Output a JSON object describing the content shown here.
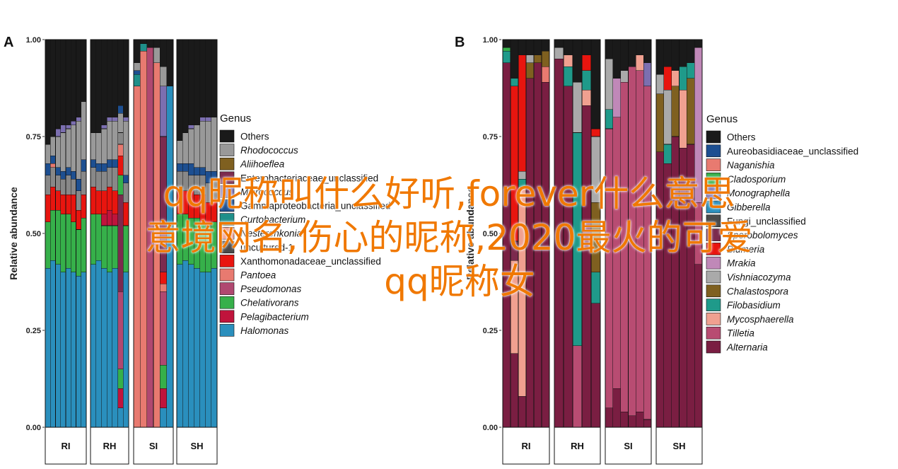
{
  "overlay_text": {
    "line1": "qq昵称叫什么好听,forever什么意思",
    "line2": "意境网名,伤心的昵称,2020最火的可爱",
    "line3": "qq昵称女"
  },
  "chart_data": [
    {
      "type": "bar",
      "stacked": true,
      "panel_label": "A",
      "ylabel": "Relative abundance",
      "ylim": [
        0,
        1
      ],
      "yticks": [
        "0.00",
        "0.25",
        "0.50",
        "0.75",
        "1.00"
      ],
      "facets": [
        "RI",
        "RH",
        "SI",
        "SH"
      ],
      "legend": {
        "title": "Genus",
        "placement": "right"
      },
      "series": [
        {
          "name": "Others",
          "color": "#1a1a1a"
        },
        {
          "name": "Rhodococcus",
          "color": "#999999",
          "italic": true
        },
        {
          "name": "Aliihoeflea",
          "color": "#7f6020",
          "italic": true
        },
        {
          "name": "Enterobacteriaceae_unclassified",
          "color": "#7c2a4e",
          "italic": false
        },
        {
          "name": "Micrococcus",
          "color": "#7c6fb0",
          "italic": true
        },
        {
          "name": "Gammaproteobacteria_unclassified",
          "color": "#1d4f91",
          "italic": false
        },
        {
          "name": "Curtobacterium",
          "color": "#1f8f8a",
          "italic": true
        },
        {
          "name": "Nesterenkonia",
          "color": "#f0a090",
          "italic": true
        },
        {
          "name": "uncultured-1",
          "color": "#4a4a4a",
          "italic": false
        },
        {
          "name": "Xanthomonadaceae_unclassified",
          "color": "#e8150f",
          "italic": false
        },
        {
          "name": "Pantoea",
          "color": "#e87a70",
          "italic": true
        },
        {
          "name": "Pseudomonas",
          "color": "#b04870",
          "italic": true
        },
        {
          "name": "Chelativorans",
          "color": "#36b04a",
          "italic": true
        },
        {
          "name": "Pelagibacterium",
          "color": "#c0143c",
          "italic": true
        },
        {
          "name": "Halomonas",
          "color": "#2a8fbd",
          "italic": true
        }
      ],
      "facet_samples": [
        [
          {
            "Halomonas": 0.41,
            "Chelativorans": 0.12,
            "Xanthomonadaceae_unclassified": 0.07,
            "uncultured-1": 0.05,
            "Gammaproteobacteria_unclassified": 0.03,
            "Rhodococcus": 0.05,
            "Others": 0.27
          },
          {
            "Halomonas": 0.43,
            "Chelativorans": 0.13,
            "Xanthomonadaceae_unclassified": 0.06,
            "uncultured-1": 0.05,
            "Pantoea": 0.01,
            "Gammaproteobacteria_unclassified": 0.02,
            "Rhodococcus": 0.05,
            "Others": 0.25
          },
          {
            "Halomonas": 0.42,
            "Chelativorans": 0.14,
            "Xanthomonadaceae_unclassified": 0.05,
            "uncultured-1": 0.04,
            "Gammaproteobacteria_unclassified": 0.02,
            "Rhodococcus": 0.08,
            "Micrococcus": 0.02,
            "Others": 0.23
          },
          {
            "Halomonas": 0.4,
            "Chelativorans": 0.15,
            "Xanthomonadaceae_unclassified": 0.05,
            "uncultured-1": 0.04,
            "Gammaproteobacteria_unclassified": 0.02,
            "Rhodococcus": 0.1,
            "Micrococcus": 0.02,
            "Others": 0.22
          },
          {
            "Halomonas": 0.41,
            "Chelativorans": 0.14,
            "Xanthomonadaceae_unclassified": 0.05,
            "uncultured-1": 0.05,
            "Gammaproteobacteria_unclassified": 0.02,
            "Rhodococcus": 0.1,
            "Micrococcus": 0.01,
            "Others": 0.22
          },
          {
            "Halomonas": 0.4,
            "Chelativorans": 0.13,
            "Xanthomonadaceae_unclassified": 0.07,
            "uncultured-1": 0.04,
            "Gammaproteobacteria_unclassified": 0.02,
            "Rhodococcus": 0.12,
            "Micrococcus": 0.01,
            "Others": 0.21
          },
          {
            "Halomonas": 0.39,
            "Chelativorans": 0.12,
            "Xanthomonadaceae_unclassified": 0.05,
            "uncultured-1": 0.05,
            "Gammaproteobacteria_unclassified": 0.03,
            "Rhodococcus": 0.15,
            "Micrococcus": 0.01,
            "Others": 0.2
          },
          {
            "Halomonas": 0.4,
            "Chelativorans": 0.14,
            "Xanthomonadaceae_unclassified": 0.06,
            "uncultured-1": 0.06,
            "Gammaproteobacteria_unclassified": 0.03,
            "Rhodococcus": 0.15,
            "Others": 0.16
          }
        ],
        [
          {
            "Halomonas": 0.42,
            "Chelativorans": 0.13,
            "Xanthomonadaceae_unclassified": 0.07,
            "uncultured-1": 0.05,
            "Gammaproteobacteria_unclassified": 0.02,
            "Rhodococcus": 0.07,
            "Others": 0.24
          },
          {
            "Halomonas": 0.43,
            "Chelativorans": 0.12,
            "Xanthomonadaceae_unclassified": 0.06,
            "uncultured-1": 0.05,
            "Gammaproteobacteria_unclassified": 0.02,
            "Rhodococcus": 0.08,
            "Others": 0.24
          },
          {
            "Halomonas": 0.41,
            "Chelativorans": 0.11,
            "Pelagibacterium": 0.03,
            "Xanthomonadaceae_unclassified": 0.06,
            "uncultured-1": 0.05,
            "Gammaproteobacteria_unclassified": 0.02,
            "Rhodococcus": 0.09,
            "Micrococcus": 0.01,
            "Others": 0.22
          },
          {
            "Halomonas": 0.4,
            "Chelativorans": 0.12,
            "Pelagibacterium": 0.04,
            "Xanthomonadaceae_unclassified": 0.06,
            "uncultured-1": 0.05,
            "Gammaproteobacteria_unclassified": 0.02,
            "Rhodococcus": 0.1,
            "Micrococcus": 0.01,
            "Others": 0.2
          },
          {
            "Halomonas": 0.41,
            "Chelativorans": 0.11,
            "Pelagibacterium": 0.03,
            "Xanthomonadaceae_unclassified": 0.06,
            "uncultured-1": 0.06,
            "Gammaproteobacteria_unclassified": 0.02,
            "Rhodococcus": 0.1,
            "Micrococcus": 0.01,
            "Others": 0.2
          },
          {
            "Halomonas": 0.05,
            "Pelagibacterium": 0.05,
            "Chelativorans": 0.05,
            "Pseudomonas": 0.2,
            "Enterobacteriaceae_unclassified": 0.25,
            "Chelativorans2": 0.05,
            "Xanthomonadaceae_unclassified": 0.05,
            "Pantoea": 0.03,
            "uncultured-1": 0.03,
            "Rhodococcus": 0.05,
            "Gammaproteobacteria_unclassified": 0.02,
            "Others": 0.17
          },
          {
            "Halomonas": 0.4,
            "Chelativorans": 0.12,
            "Xanthomonadaceae_unclassified": 0.06,
            "uncultured-1": 0.05,
            "Gammaproteobacteria_unclassified": 0.02,
            "Rhodococcus": 0.14,
            "Micrococcus": 0.01,
            "Others": 0.2
          }
        ],
        [
          {
            "Pantoea": 0.88,
            "Curtobacterium": 0.03,
            "Gammaproteobacteria_unclassified": 0.01,
            "Rhodococcus": 0.02,
            "Others": 0.06
          },
          {
            "Pantoea": 0.97,
            "Curtobacterium": 0.02,
            "Others": 0.01
          },
          {
            "Pseudomonas": 0.98,
            "Others": 0.02
          },
          {
            "Pantoea": 0.94,
            "Rhodococcus": 0.04,
            "Others": 0.02
          },
          {
            "Halomonas": 0.05,
            "Pelagibacterium": 0.05,
            "Chelativorans": 0.06,
            "Pseudomonas": 0.19,
            "Pantoea": 0.02,
            "Xanthomonadaceae_unclassified": 0.03,
            "Enterobacteriaceae_unclassified": 0.35,
            "Micrococcus": 0.13,
            "Rhodococcus": 0.05,
            "Others": 0.07
          },
          {
            "Halomonas": 0.88,
            "Others": 0.12
          }
        ],
        [
          {
            "Halomonas": 0.42,
            "Chelativorans": 0.13,
            "Xanthomonadaceae_unclassified": 0.06,
            "uncultured-1": 0.05,
            "Gammaproteobacteria_unclassified": 0.02,
            "Rhodococcus": 0.06,
            "Others": 0.26
          },
          {
            "Halomonas": 0.43,
            "Chelativorans": 0.12,
            "Xanthomonadaceae_unclassified": 0.06,
            "uncultured-1": 0.05,
            "Gammaproteobacteria_unclassified": 0.02,
            "Rhodococcus": 0.08,
            "Others": 0.24
          },
          {
            "Halomonas": 0.42,
            "Chelativorans": 0.12,
            "Xanthomonadaceae_unclassified": 0.07,
            "uncultured-1": 0.04,
            "Gammaproteobacteria_unclassified": 0.03,
            "Rhodococcus": 0.09,
            "Micrococcus": 0.01,
            "Others": 0.22
          },
          {
            "Halomonas": 0.41,
            "Chelativorans": 0.13,
            "Xanthomonadaceae_unclassified": 0.06,
            "uncultured-1": 0.05,
            "Gammaproteobacteria_unclassified": 0.02,
            "Rhodococcus": 0.11,
            "Others": 0.22
          },
          {
            "Halomonas": 0.4,
            "Chelativorans": 0.13,
            "Xanthomonadaceae_unclassified": 0.07,
            "uncultured-1": 0.05,
            "Gammaproteobacteria_unclassified": 0.02,
            "Rhodococcus": 0.12,
            "Micrococcus": 0.01,
            "Others": 0.2
          },
          {
            "Halomonas": 0.4,
            "Chelativorans": 0.12,
            "Xanthomonadaceae_unclassified": 0.06,
            "uncultured-1": 0.05,
            "Gammaproteobacteria_unclassified": 0.03,
            "Rhodococcus": 0.13,
            "Micrococcus": 0.01,
            "Others": 0.2
          },
          {
            "Halomonas": 0.41,
            "Chelativorans": 0.12,
            "Xanthomonadaceae_unclassified": 0.06,
            "uncultured-1": 0.05,
            "Gammaproteobacteria_unclassified": 0.02,
            "Rhodococcus": 0.14,
            "Others": 0.2
          }
        ]
      ]
    },
    {
      "type": "bar",
      "stacked": true,
      "panel_label": "B",
      "ylabel": "Relative abundance",
      "ylim": [
        0,
        1
      ],
      "yticks": [
        "0.00",
        "0.25",
        "0.50",
        "0.75",
        "1.00"
      ],
      "facets": [
        "RI",
        "RH",
        "SI",
        "SH"
      ],
      "legend": {
        "title": "Genus",
        "placement": "right"
      },
      "series": [
        {
          "name": "Others",
          "color": "#1a1a1a",
          "italic": false
        },
        {
          "name": "Aureobasidiaceae_unclassified",
          "color": "#1d4f91",
          "italic": false
        },
        {
          "name": "Naganishia",
          "color": "#e87a70",
          "italic": true
        },
        {
          "name": "Cladosporium",
          "color": "#36b04a",
          "italic": true
        },
        {
          "name": "Monographella",
          "color": "#7c6fb0",
          "italic": true
        },
        {
          "name": "Gibberella",
          "color": "#2a8fbd",
          "italic": true
        },
        {
          "name": "Fungi_unclassified",
          "color": "#4a4a4a",
          "italic": false
        },
        {
          "name": "Sporobolomyces",
          "color": "#7c2a4e",
          "italic": true
        },
        {
          "name": "Blumeria",
          "color": "#e8150f",
          "italic": true
        },
        {
          "name": "Mrakia",
          "color": "#c088b8",
          "italic": true
        },
        {
          "name": "Vishniacozyma",
          "color": "#aaaaaa",
          "italic": true
        },
        {
          "name": "Chalastospora",
          "color": "#7f6020",
          "italic": true
        },
        {
          "name": "Filobasidium",
          "color": "#1f9a8a",
          "italic": true
        },
        {
          "name": "Mycosphaerella",
          "color": "#f0a090",
          "italic": true
        },
        {
          "name": "Tilletia",
          "color": "#b84c72",
          "italic": true
        },
        {
          "name": "Alternaria",
          "color": "#7a1e42",
          "italic": true
        }
      ],
      "facet_samples": [
        [
          {
            "Alternaria": 0.94,
            "Filobasidium": 0.03,
            "Cladosporium": 0.01,
            "Others": 0.02
          },
          {
            "Alternaria": 0.19,
            "Mycosphaerella": 0.24,
            "Sporobolomyces": 0.05,
            "Blumeria": 0.4,
            "Filobasidium": 0.02,
            "Others": 0.1
          },
          {
            "Alternaria": 0.08,
            "Mycosphaerella": 0.54,
            "Filobasidium": 0.02,
            "Vishniacozyma": 0.02,
            "Blumeria": 0.3,
            "Others": 0.04
          },
          {
            "Alternaria": 0.9,
            "Chalastospora": 0.04,
            "Vishniacozyma": 0.02,
            "Others": 0.04
          },
          {
            "Alternaria": 0.94,
            "Chalastospora": 0.02,
            "Others": 0.04
          },
          {
            "Alternaria": 0.89,
            "Naganishia": 0.04,
            "Chalastospora": 0.04,
            "Others": 0.03
          }
        ],
        [
          {
            "Alternaria": 0.95,
            "Vishniacozyma": 0.03,
            "Others": 0.02
          },
          {
            "Alternaria": 0.88,
            "Filobasidium": 0.05,
            "Mycosphaerella": 0.03,
            "Others": 0.04
          },
          {
            "Tilletia": 0.21,
            "Filobasidium": 0.55,
            "Vishniacozyma": 0.13,
            "Others": 0.11
          },
          {
            "Alternaria": 0.83,
            "Mycosphaerella": 0.04,
            "Filobasidium": 0.05,
            "Blumeria": 0.04,
            "Others": 0.04
          },
          {
            "Alternaria": 0.32,
            "Filobasidium": 0.08,
            "Chalastospora": 0.18,
            "Vishniacozyma": 0.17,
            "Blumeria": 0.02,
            "Others": 0.23
          }
        ],
        [
          {
            "Alternaria": 0.05,
            "Tilletia": 0.72,
            "Filobasidium": 0.05,
            "Vishniacozyma": 0.13,
            "Others": 0.05
          },
          {
            "Alternaria": 0.1,
            "Tilletia": 0.7,
            "Mrakia": 0.1,
            "Others": 0.1
          },
          {
            "Alternaria": 0.04,
            "Tilletia": 0.85,
            "Vishniacozyma": 0.03,
            "Others": 0.08
          },
          {
            "Alternaria": 0.03,
            "Tilletia": 0.9,
            "Others": 0.07
          },
          {
            "Alternaria": 0.04,
            "Tilletia": 0.88,
            "Mycosphaerella": 0.04,
            "Others": 0.04
          },
          {
            "Alternaria": 0.02,
            "Tilletia": 0.86,
            "Monographella": 0.06,
            "Others": 0.06
          }
        ],
        [
          {
            "Alternaria": 0.71,
            "Chalastospora": 0.15,
            "Vishniacozyma": 0.05,
            "Others": 0.09
          },
          {
            "Alternaria": 0.68,
            "Filobasidium": 0.05,
            "Vishniacozyma": 0.14,
            "Blumeria": 0.06,
            "Others": 0.07
          },
          {
            "Alternaria": 0.75,
            "Chalastospora": 0.13,
            "Mycosphaerella": 0.04,
            "Others": 0.08
          },
          {
            "Alternaria": 0.72,
            "Mycosphaerella": 0.15,
            "Filobasidium": 0.06,
            "Others": 0.07
          },
          {
            "Alternaria": 0.73,
            "Chalastospora": 0.17,
            "Filobasidium": 0.04,
            "Others": 0.06
          },
          {
            "Alternaria": 0.42,
            "Tilletia": 0.16,
            "Mrakia": 0.4,
            "Others": 0.02
          }
        ]
      ]
    }
  ]
}
